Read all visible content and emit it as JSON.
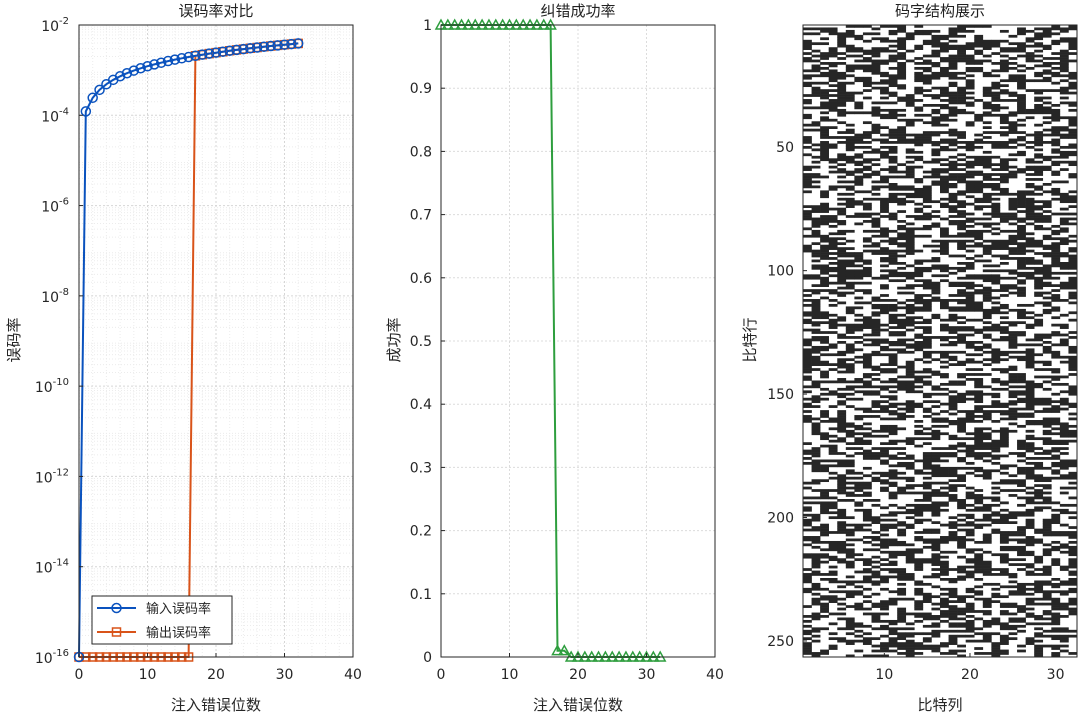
{
  "chart_data": [
    {
      "type": "line",
      "yscale": "log",
      "title": "误码率对比",
      "xlabel": "注入错误位数",
      "ylabel": "误码率",
      "xlim": [
        0,
        40
      ],
      "ylim_exponent": [
        -16,
        -2
      ],
      "grid": true,
      "minor_grid": true,
      "legend_location": "bottom-left",
      "x_ticks": [
        0,
        10,
        20,
        30,
        40
      ],
      "y_tick_exponents": [
        -16,
        -14,
        -12,
        -10,
        -8,
        -6,
        -4,
        -2
      ],
      "zero_plotted_at": 1e-16,
      "x": [
        0,
        1,
        2,
        3,
        4,
        5,
        6,
        7,
        8,
        9,
        10,
        11,
        12,
        13,
        14,
        15,
        16,
        17,
        18,
        19,
        20,
        21,
        22,
        23,
        24,
        25,
        26,
        27,
        28,
        29,
        30,
        31,
        32
      ],
      "series": [
        {
          "name": "输入误码率",
          "color": "#0a52be",
          "marker": "circle",
          "values": [
            0,
            0.000122,
            0.000244,
            0.000366,
            0.000488,
            0.00061,
            0.000732,
            0.000854,
            0.000977,
            0.0011,
            0.00122,
            0.00134,
            0.00146,
            0.00159,
            0.00171,
            0.00183,
            0.00195,
            0.00208,
            0.0022,
            0.00232,
            0.00244,
            0.00256,
            0.00269,
            0.00281,
            0.00293,
            0.00305,
            0.00317,
            0.0033,
            0.00342,
            0.00354,
            0.00366,
            0.00378,
            0.00391
          ]
        },
        {
          "name": "输出误码率",
          "color": "#d95319",
          "marker": "square",
          "values": [
            0,
            0,
            0,
            0,
            0,
            0,
            0,
            0,
            0,
            0,
            0,
            0,
            0,
            0,
            0,
            0,
            0,
            0.00208,
            0.0022,
            0.00232,
            0.00244,
            0.00256,
            0.00269,
            0.00281,
            0.00293,
            0.00305,
            0.00317,
            0.0033,
            0.00342,
            0.00354,
            0.00366,
            0.00378,
            0.00391
          ]
        }
      ]
    },
    {
      "type": "line",
      "title": "纠错成功率",
      "xlabel": "注入错误位数",
      "ylabel": "成功率",
      "xlim": [
        0,
        40
      ],
      "ylim": [
        0,
        1
      ],
      "grid": true,
      "x_ticks": [
        0,
        10,
        20,
        30,
        40
      ],
      "y_ticks": [
        0,
        0.1,
        0.2,
        0.3,
        0.4,
        0.5,
        0.6,
        0.7,
        0.8,
        0.9,
        1
      ],
      "x": [
        0,
        1,
        2,
        3,
        4,
        5,
        6,
        7,
        8,
        9,
        10,
        11,
        12,
        13,
        14,
        15,
        16,
        17,
        18,
        19,
        20,
        21,
        22,
        23,
        24,
        25,
        26,
        27,
        28,
        29,
        30,
        31,
        32
      ],
      "series": [
        {
          "name": "成功率",
          "color": "#2e9e3e",
          "marker": "triangle",
          "values": [
            1,
            1,
            1,
            1,
            1,
            1,
            1,
            1,
            1,
            1,
            1,
            1,
            1,
            1,
            1,
            1,
            1,
            0.01,
            0.01,
            0,
            0,
            0,
            0,
            0,
            0,
            0,
            0,
            0,
            0,
            0,
            0,
            0,
            0
          ]
        }
      ]
    },
    {
      "type": "heatmap",
      "title": "码字结构展示",
      "xlabel": "比特列",
      "ylabel": "比特行",
      "rows": 256,
      "cols": 32,
      "colors": {
        "zero": "#ffffff",
        "one": "#262626"
      },
      "x_ticks": [
        10,
        20,
        30
      ],
      "y_ticks": [
        50,
        100,
        150,
        200,
        250
      ],
      "pattern": "random binary bits (approximate, seeded)",
      "seed": 20240611
    }
  ]
}
